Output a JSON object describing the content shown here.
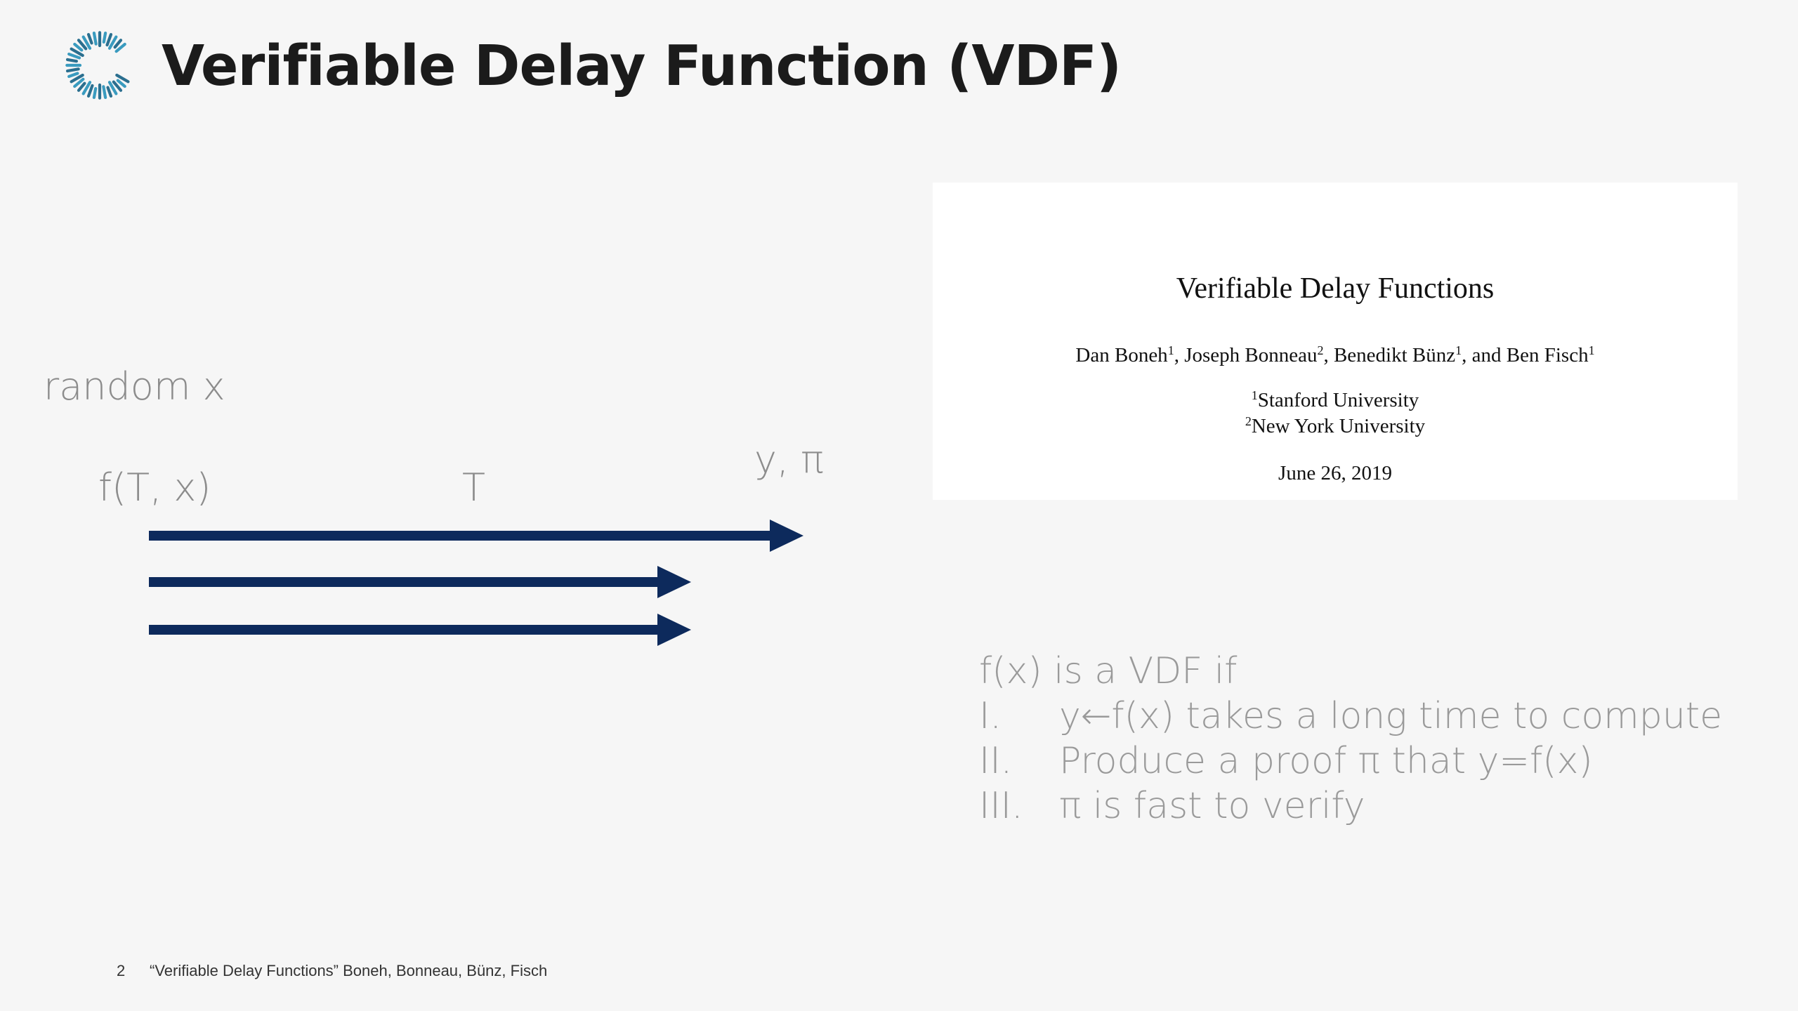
{
  "slide": {
    "title": "Verifiable Delay Function (VDF)",
    "accent_color": "#2b6f8f",
    "arrow_color": "#0d2a5c"
  },
  "diagram": {
    "random_label": "random x",
    "input_label": "f(T, x)",
    "time_label": "T",
    "output_label": "y, π"
  },
  "paper": {
    "title": "Verifiable Delay Functions",
    "authors": [
      {
        "name": "Dan Boneh",
        "sup": "1"
      },
      {
        "name": "Joseph Bonneau",
        "sup": "2"
      },
      {
        "name": "Benedikt Bünz",
        "sup": "1"
      },
      {
        "name": "Ben Fisch",
        "sup": "1"
      }
    ],
    "authors_sep": ", ",
    "authors_and": ", and ",
    "affiliations": [
      {
        "sup": "1",
        "name": "Stanford University"
      },
      {
        "sup": "2",
        "name": "New York University"
      }
    ],
    "date": "June 26, 2019"
  },
  "definition": {
    "intro": "f(x) is a VDF if",
    "items": [
      {
        "num": "I.",
        "text": "y←f(x) takes a long time to compute"
      },
      {
        "num": "II.",
        "text": "Produce a proof π that y=f(x)"
      },
      {
        "num": "III.",
        "text": "π is fast to verify"
      }
    ]
  },
  "footer": {
    "page_number": "2",
    "citation": "“Verifiable Delay Functions” Boneh, Bonneau, Bünz, Fisch"
  }
}
